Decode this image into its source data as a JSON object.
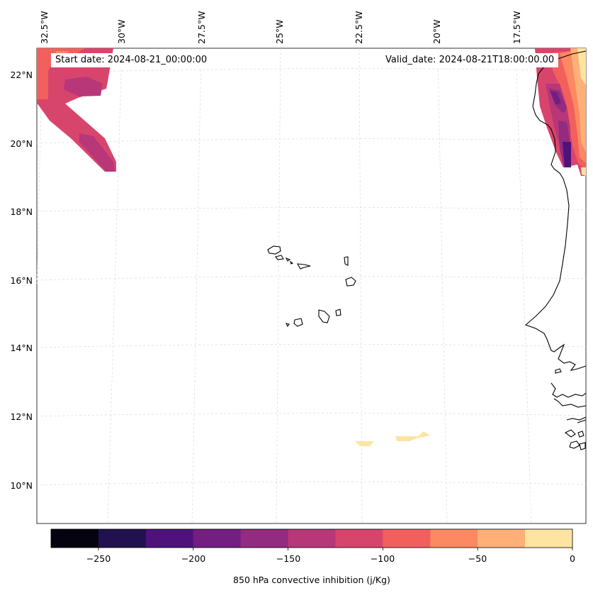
{
  "map": {
    "start_date_label": "Start date: 2024-08-21_00:00:00",
    "valid_date_label": "Valid_date: 2024-08-21T18:00:00.00",
    "lon_labels": [
      "32.5°W",
      "30°W",
      "27.5°W",
      "25°W",
      "22.5°W",
      "20°W",
      "17.5°W"
    ],
    "lat_labels": [
      "22°N",
      "20°N",
      "18°N",
      "16°N",
      "14°N",
      "12°N",
      "10°N"
    ],
    "colorbar": {
      "label": "850 hPa convective inhibition (j/Kg)",
      "ticks": [
        "−250",
        "−200",
        "−150",
        "−100",
        "−50",
        "0"
      ],
      "levels": [
        -275,
        -250,
        -225,
        -200,
        -175,
        -150,
        -125,
        -100,
        -75,
        -50,
        -25,
        0
      ],
      "colors": [
        "#05030f",
        "#21114e",
        "#4f127b",
        "#721f81",
        "#932b80",
        "#b73779",
        "#d8456c",
        "#f1605d",
        "#fc8961",
        "#feb078",
        "#fde5a1"
      ]
    },
    "coastline_color": "#000000",
    "gridline_color": "#cccccc"
  }
}
